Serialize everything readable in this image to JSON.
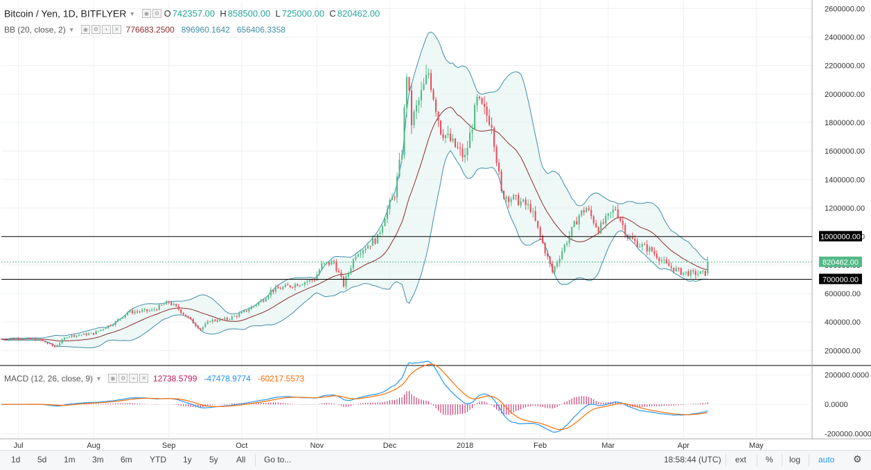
{
  "header": {
    "title": "Bitcoin / Yen, 1D, BITFLYER",
    "o_label": "O",
    "o": "742357.00",
    "h_label": "H",
    "h": "858500.00",
    "l_label": "L",
    "l": "725000.00",
    "c_label": "C",
    "c": "820462.00"
  },
  "bb": {
    "label": "BB (20, close, 2)",
    "v1": "776683.2500",
    "v2": "896960.1642",
    "v3": "656406.3358"
  },
  "macd": {
    "label": "MACD (12, 26, close, 9)",
    "v1": "12738.5799",
    "v2": "-47478.9774",
    "v3": "-60217.5573"
  },
  "colors": {
    "up": "#53b987",
    "down": "#eb4d5c",
    "band": "#3e8ea8",
    "basis": "#8b2c2c",
    "macd": "#2196f3",
    "signal": "#ff6d00",
    "hist": "#c2185b"
  },
  "axes": {
    "price_ticks": [
      "2600000.00",
      "2400000.00",
      "2200000.00",
      "2000000.00",
      "1800000.00",
      "1600000.00",
      "1400000.00",
      "1200000.00",
      "1000000.00",
      "800000.00",
      "600000.00",
      "400000.00",
      "200000.00"
    ],
    "macd_ticks": [
      "200000.0000",
      "0.0000",
      "-200000.0000"
    ],
    "time_ticks": [
      "Jul",
      "Aug",
      "Sep",
      "Oct",
      "Nov",
      "Dec",
      "2018",
      "Feb",
      "Mar",
      "Apr",
      "May"
    ],
    "hline1": "1000000.00",
    "hline2": "700000.00",
    "last_price": "820462.00"
  },
  "chart_data": {
    "type": "candlestick",
    "title": "Bitcoin / Yen, 1D, BITFLYER",
    "ylim": [
      100000,
      2650000
    ],
    "x_range": [
      "2017-06-24",
      "2018-05-24"
    ],
    "price_key": [
      [
        "2017-06-24",
        280000
      ],
      [
        "2017-07-01",
        285000
      ],
      [
        "2017-07-10",
        275000
      ],
      [
        "2017-07-16",
        225000
      ],
      [
        "2017-07-21",
        300000
      ],
      [
        "2017-08-01",
        320000
      ],
      [
        "2017-08-10",
        400000
      ],
      [
        "2017-08-15",
        470000
      ],
      [
        "2017-08-25",
        480000
      ],
      [
        "2017-09-01",
        540000
      ],
      [
        "2017-09-05",
        490000
      ],
      [
        "2017-09-14",
        350000
      ],
      [
        "2017-09-18",
        410000
      ],
      [
        "2017-09-25",
        420000
      ],
      [
        "2017-10-01",
        460000
      ],
      [
        "2017-10-10",
        560000
      ],
      [
        "2017-10-13",
        620000
      ],
      [
        "2017-10-20",
        650000
      ],
      [
        "2017-10-31",
        700000
      ],
      [
        "2017-11-03",
        800000
      ],
      [
        "2017-11-08",
        820000
      ],
      [
        "2017-11-12",
        660000
      ],
      [
        "2017-11-17",
        880000
      ],
      [
        "2017-11-26",
        990000
      ],
      [
        "2017-11-29",
        1150000
      ],
      [
        "2017-12-03",
        1300000
      ],
      [
        "2017-12-06",
        1600000
      ],
      [
        "2017-12-08",
        2150000
      ],
      [
        "2017-12-10",
        1800000
      ],
      [
        "2017-12-17",
        2150000
      ],
      [
        "2017-12-22",
        1750000
      ],
      [
        "2017-12-27",
        1650000
      ],
      [
        "2018-01-01",
        1550000
      ],
      [
        "2018-01-06",
        1950000
      ],
      [
        "2018-01-12",
        1800000
      ],
      [
        "2018-01-16",
        1300000
      ],
      [
        "2018-01-23",
        1250000
      ],
      [
        "2018-01-28",
        1200000
      ],
      [
        "2018-02-01",
        1000000
      ],
      [
        "2018-02-06",
        750000
      ],
      [
        "2018-02-10",
        900000
      ],
      [
        "2018-02-17",
        1150000
      ],
      [
        "2018-02-20",
        1200000
      ],
      [
        "2018-02-25",
        1050000
      ],
      [
        "2018-03-04",
        1200000
      ],
      [
        "2018-03-09",
        1000000
      ],
      [
        "2018-03-13",
        950000
      ],
      [
        "2018-03-19",
        900000
      ],
      [
        "2018-03-25",
        800000
      ],
      [
        "2018-03-31",
        750000
      ],
      [
        "2018-04-05",
        740000
      ],
      [
        "2018-04-10",
        742357
      ],
      [
        "2018-04-11",
        820462
      ]
    ],
    "hlines": [
      1000000,
      700000
    ],
    "last": 820462,
    "bollinger": {
      "period": 20,
      "mult": 2,
      "basis": 776683.25,
      "upper": 896960.1642,
      "lower": 656406.3358
    },
    "macd": {
      "fast": 12,
      "slow": 26,
      "signal": 9,
      "hist": 12738.5799,
      "macd": -47478.9774,
      "sig": -60217.5573
    }
  },
  "toolbar": {
    "ranges": [
      "1d",
      "5d",
      "1m",
      "3m",
      "6m",
      "YTD",
      "1y",
      "5y",
      "All"
    ],
    "goto": "Go to...",
    "time": "18:58:44 (UTC)",
    "ext": "ext",
    "pct": "%",
    "log": "log",
    "auto": "auto"
  }
}
